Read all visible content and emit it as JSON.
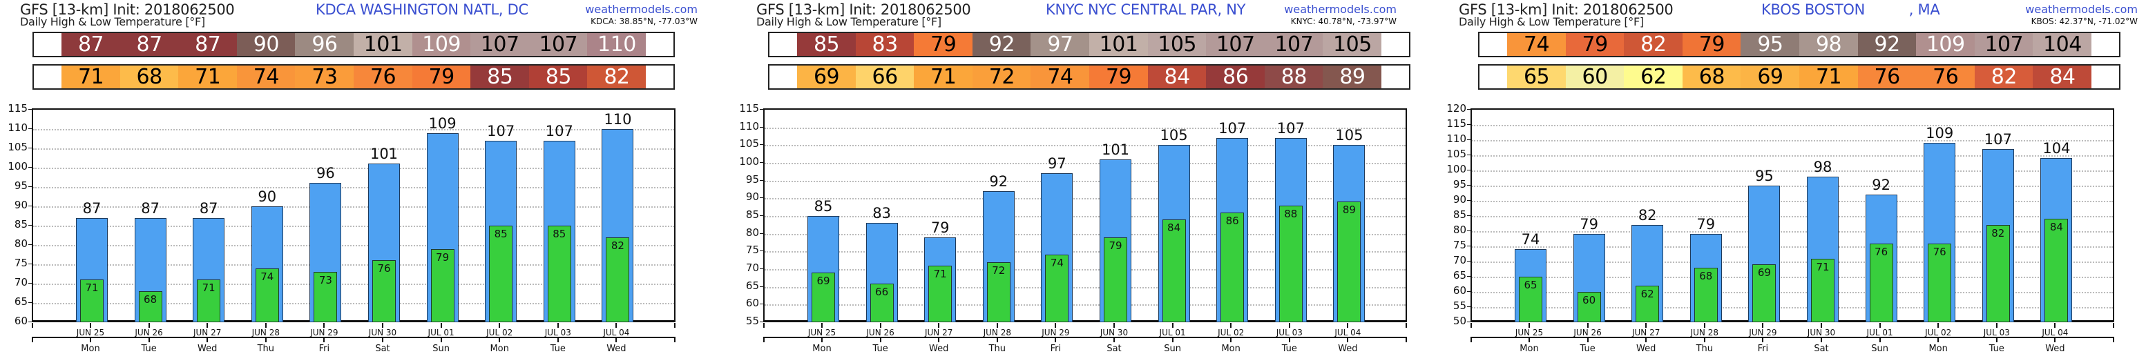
{
  "dates": [
    "JUN 25",
    "JUN 26",
    "JUN 27",
    "JUN 28",
    "JUN 29",
    "JUN 30",
    "JUL 01",
    "JUL 02",
    "JUL 03",
    "JUL 04"
  ],
  "days": [
    "Mon",
    "Tue",
    "Wed",
    "Thu",
    "Fri",
    "Sat",
    "Sun",
    "Mon",
    "Tue",
    "Wed"
  ],
  "colors": {
    "high_bar": "#4ea1f2",
    "low_bar": "#38cf3d",
    "station_title": "#3a4fd0"
  },
  "panels": [
    {
      "model_line": "GFS [13-km] Init: 2018062500",
      "subtitle": "Daily High & Low Temperature [°F]",
      "station": "KDCA WASHINGTON NATL, DC",
      "brand": "weathermodels.com",
      "coords": "KDCA: 38.85°N, -77.03°W",
      "high_strip": [
        {
          "v": "87",
          "bg": "#8e3a3c",
          "fg": "#ffffff"
        },
        {
          "v": "87",
          "bg": "#8e3a3c",
          "fg": "#ffffff"
        },
        {
          "v": "87",
          "bg": "#8e3a3c",
          "fg": "#ffffff"
        },
        {
          "v": "90",
          "bg": "#7c5d57",
          "fg": "#ffffff"
        },
        {
          "v": "96",
          "bg": "#9c8a82",
          "fg": "#ffffff"
        },
        {
          "v": "101",
          "bg": "#c2b0a8",
          "fg": "#000000"
        },
        {
          "v": "109",
          "bg": "#b0908f",
          "fg": "#ffffff"
        },
        {
          "v": "107",
          "bg": "#b39a99",
          "fg": "#000000"
        },
        {
          "v": "107",
          "bg": "#b39a99",
          "fg": "#000000"
        },
        {
          "v": "110",
          "bg": "#ab8489",
          "fg": "#ffffff"
        }
      ],
      "low_strip": [
        {
          "v": "71",
          "bg": "#fba63a",
          "fg": "#000000"
        },
        {
          "v": "68",
          "bg": "#fdbb4a",
          "fg": "#000000"
        },
        {
          "v": "71",
          "bg": "#fba63a",
          "fg": "#000000"
        },
        {
          "v": "74",
          "bg": "#f9953a",
          "fg": "#000000"
        },
        {
          "v": "73",
          "bg": "#fa9c3a",
          "fg": "#000000"
        },
        {
          "v": "76",
          "bg": "#f7873a",
          "fg": "#000000"
        },
        {
          "v": "79",
          "bg": "#f57a36",
          "fg": "#000000"
        },
        {
          "v": "85",
          "bg": "#963a3a",
          "fg": "#ffffff"
        },
        {
          "v": "85",
          "bg": "#b04036",
          "fg": "#ffffff"
        },
        {
          "v": "82",
          "bg": "#cf5736",
          "fg": "#ffffff"
        }
      ]
    },
    {
      "model_line": "GFS [13-km] Init: 2018062500",
      "subtitle": "Daily High & Low Temperature [°F]",
      "station": "KNYC NYC CENTRAL PAR, NY",
      "brand": "weathermodels.com",
      "coords": "KNYC: 40.78°N, -73.97°W",
      "high_strip": [
        {
          "v": "85",
          "bg": "#963a3a",
          "fg": "#ffffff"
        },
        {
          "v": "83",
          "bg": "#b84636",
          "fg": "#ffffff"
        },
        {
          "v": "79",
          "bg": "#f57a36",
          "fg": "#000000"
        },
        {
          "v": "92",
          "bg": "#7a625c",
          "fg": "#ffffff"
        },
        {
          "v": "97",
          "bg": "#a4928a",
          "fg": "#ffffff"
        },
        {
          "v": "101",
          "bg": "#c2b0a8",
          "fg": "#000000"
        },
        {
          "v": "105",
          "bg": "#bba6a3",
          "fg": "#000000"
        },
        {
          "v": "107",
          "bg": "#b39a99",
          "fg": "#000000"
        },
        {
          "v": "107",
          "bg": "#b39a99",
          "fg": "#000000"
        },
        {
          "v": "105",
          "bg": "#bba6a3",
          "fg": "#000000"
        }
      ],
      "low_strip": [
        {
          "v": "69",
          "bg": "#fcb445",
          "fg": "#000000"
        },
        {
          "v": "66",
          "bg": "#fed36a",
          "fg": "#000000"
        },
        {
          "v": "71",
          "bg": "#fba63a",
          "fg": "#000000"
        },
        {
          "v": "72",
          "bg": "#fa9f3a",
          "fg": "#000000"
        },
        {
          "v": "74",
          "bg": "#f9953a",
          "fg": "#000000"
        },
        {
          "v": "79",
          "bg": "#f57a36",
          "fg": "#000000"
        },
        {
          "v": "84",
          "bg": "#be4a38",
          "fg": "#ffffff"
        },
        {
          "v": "86",
          "bg": "#963a3a",
          "fg": "#ffffff"
        },
        {
          "v": "88",
          "bg": "#8e4a48",
          "fg": "#ffffff"
        },
        {
          "v": "89",
          "bg": "#84574f",
          "fg": "#ffffff"
        }
      ]
    },
    {
      "model_line": "GFS [13-km] Init: 2018062500",
      "subtitle": "Daily High & Low Temperature [°F]",
      "station": "KBOS BOSTON          , MA",
      "brand": "weathermodels.com",
      "coords": "KBOS: 42.37°N, -71.02°W",
      "high_strip": [
        {
          "v": "74",
          "bg": "#f9953a",
          "fg": "#000000"
        },
        {
          "v": "79",
          "bg": "#e8693a",
          "fg": "#000000"
        },
        {
          "v": "82",
          "bg": "#cf5736",
          "fg": "#ffffff"
        },
        {
          "v": "79",
          "bg": "#f07436",
          "fg": "#000000"
        },
        {
          "v": "95",
          "bg": "#8f7c75",
          "fg": "#ffffff"
        },
        {
          "v": "98",
          "bg": "#a8968f",
          "fg": "#ffffff"
        },
        {
          "v": "92",
          "bg": "#7a625c",
          "fg": "#ffffff"
        },
        {
          "v": "109",
          "bg": "#b0908f",
          "fg": "#ffffff"
        },
        {
          "v": "107",
          "bg": "#b39a99",
          "fg": "#000000"
        },
        {
          "v": "104",
          "bg": "#bba6a3",
          "fg": "#000000"
        }
      ],
      "low_strip": [
        {
          "v": "65",
          "bg": "#fed86f",
          "fg": "#000000"
        },
        {
          "v": "60",
          "bg": "#f4f0a4",
          "fg": "#000000"
        },
        {
          "v": "62",
          "bg": "#fefb8e",
          "fg": "#000000"
        },
        {
          "v": "68",
          "bg": "#fdbb4a",
          "fg": "#000000"
        },
        {
          "v": "69",
          "bg": "#fcb445",
          "fg": "#000000"
        },
        {
          "v": "71",
          "bg": "#fba63a",
          "fg": "#000000"
        },
        {
          "v": "76",
          "bg": "#f7873a",
          "fg": "#000000"
        },
        {
          "v": "76",
          "bg": "#f7873a",
          "fg": "#000000"
        },
        {
          "v": "82",
          "bg": "#d75c3a",
          "fg": "#ffffff"
        },
        {
          "v": "84",
          "bg": "#be4a38",
          "fg": "#ffffff"
        }
      ]
    }
  ],
  "chart_data": [
    {
      "type": "bar",
      "title": "KDCA WASHINGTON NATL, DC — Daily High & Low Temperature [°F]",
      "categories": [
        "JUN 25",
        "JUN 26",
        "JUN 27",
        "JUN 28",
        "JUN 29",
        "JUN 30",
        "JUL 01",
        "JUL 02",
        "JUL 03",
        "JUL 04"
      ],
      "secondary_categories": [
        "Mon",
        "Tue",
        "Wed",
        "Thu",
        "Fri",
        "Sat",
        "Sun",
        "Mon",
        "Tue",
        "Wed"
      ],
      "series": [
        {
          "name": "High",
          "color": "#4ea1f2",
          "values": [
            87,
            87,
            87,
            90,
            96,
            101,
            109,
            107,
            107,
            110
          ]
        },
        {
          "name": "Low",
          "color": "#38cf3d",
          "values": [
            71,
            68,
            71,
            74,
            73,
            76,
            79,
            85,
            85,
            82
          ]
        }
      ],
      "xlabel": "",
      "ylabel": "",
      "ylim": [
        60,
        115
      ],
      "yticks": [
        60,
        65,
        70,
        75,
        80,
        85,
        90,
        95,
        100,
        105,
        110,
        115
      ],
      "grid": true,
      "legend": "none"
    },
    {
      "type": "bar",
      "title": "KNYC NYC CENTRAL PAR, NY — Daily High & Low Temperature [°F]",
      "categories": [
        "JUN 25",
        "JUN 26",
        "JUN 27",
        "JUN 28",
        "JUN 29",
        "JUN 30",
        "JUL 01",
        "JUL 02",
        "JUL 03",
        "JUL 04"
      ],
      "secondary_categories": [
        "Mon",
        "Tue",
        "Wed",
        "Thu",
        "Fri",
        "Sat",
        "Sun",
        "Mon",
        "Tue",
        "Wed"
      ],
      "series": [
        {
          "name": "High",
          "color": "#4ea1f2",
          "values": [
            85,
            83,
            79,
            92,
            97,
            101,
            105,
            107,
            107,
            105
          ]
        },
        {
          "name": "Low",
          "color": "#38cf3d",
          "values": [
            69,
            66,
            71,
            72,
            74,
            79,
            84,
            86,
            88,
            89
          ]
        }
      ],
      "xlabel": "",
      "ylabel": "",
      "ylim": [
        55,
        115
      ],
      "yticks": [
        55,
        60,
        65,
        70,
        75,
        80,
        85,
        90,
        95,
        100,
        105,
        110,
        115
      ],
      "grid": true,
      "legend": "none"
    },
    {
      "type": "bar",
      "title": "KBOS BOSTON, MA — Daily High & Low Temperature [°F]",
      "categories": [
        "JUN 25",
        "JUN 26",
        "JUN 27",
        "JUN 28",
        "JUN 29",
        "JUN 30",
        "JUL 01",
        "JUL 02",
        "JUL 03",
        "JUL 04"
      ],
      "secondary_categories": [
        "Mon",
        "Tue",
        "Wed",
        "Thu",
        "Fri",
        "Sat",
        "Sun",
        "Mon",
        "Tue",
        "Wed"
      ],
      "series": [
        {
          "name": "High",
          "color": "#4ea1f2",
          "values": [
            74,
            79,
            82,
            79,
            95,
            98,
            92,
            109,
            107,
            104
          ]
        },
        {
          "name": "Low",
          "color": "#38cf3d",
          "values": [
            65,
            60,
            62,
            68,
            69,
            71,
            76,
            76,
            82,
            84
          ]
        }
      ],
      "xlabel": "",
      "ylabel": "",
      "ylim": [
        50,
        120
      ],
      "yticks": [
        50,
        55,
        60,
        65,
        70,
        75,
        80,
        85,
        90,
        95,
        100,
        105,
        110,
        115,
        120
      ],
      "grid": true,
      "legend": "none"
    }
  ]
}
